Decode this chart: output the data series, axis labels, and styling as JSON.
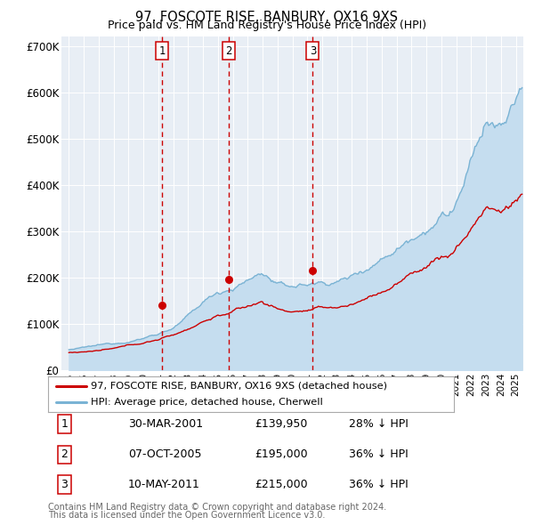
{
  "title": "97, FOSCOTE RISE, BANBURY, OX16 9XS",
  "subtitle": "Price paid vs. HM Land Registry's House Price Index (HPI)",
  "legend_line1": "97, FOSCOTE RISE, BANBURY, OX16 9XS (detached house)",
  "legend_line2": "HPI: Average price, detached house, Cherwell",
  "footer1": "Contains HM Land Registry data © Crown copyright and database right 2024.",
  "footer2": "This data is licensed under the Open Government Licence v3.0.",
  "transactions": [
    {
      "num": 1,
      "date": "30-MAR-2001",
      "price": 139950,
      "price_str": "£139,950",
      "pct": "28%",
      "dir": "↓"
    },
    {
      "num": 2,
      "date": "07-OCT-2005",
      "price": 195000,
      "price_str": "£195,000",
      "pct": "36%",
      "dir": "↓"
    },
    {
      "num": 3,
      "date": "10-MAY-2011",
      "price": 215000,
      "price_str": "£215,000",
      "pct": "36%",
      "dir": "↓"
    }
  ],
  "vline_dates": [
    2001.25,
    2005.75,
    2011.37
  ],
  "dot_prices": [
    139950,
    195000,
    215000
  ],
  "hpi_color": "#7ab3d4",
  "hpi_fill_color": "#c5ddef",
  "price_color": "#cc0000",
  "bg_color": "#e8eef5",
  "grid_color": "#ffffff",
  "vline_color": "#cc0000",
  "ylim": [
    0,
    720000
  ],
  "xlim": [
    1994.5,
    2025.5
  ],
  "yticks": [
    0,
    100000,
    200000,
    300000,
    400000,
    500000,
    600000,
    700000
  ],
  "ylabel_map": {
    "0": "£0",
    "100000": "£100K",
    "200000": "£200K",
    "300000": "£300K",
    "400000": "£400K",
    "500000": "£500K",
    "600000": "£600K",
    "700000": "£700K"
  }
}
